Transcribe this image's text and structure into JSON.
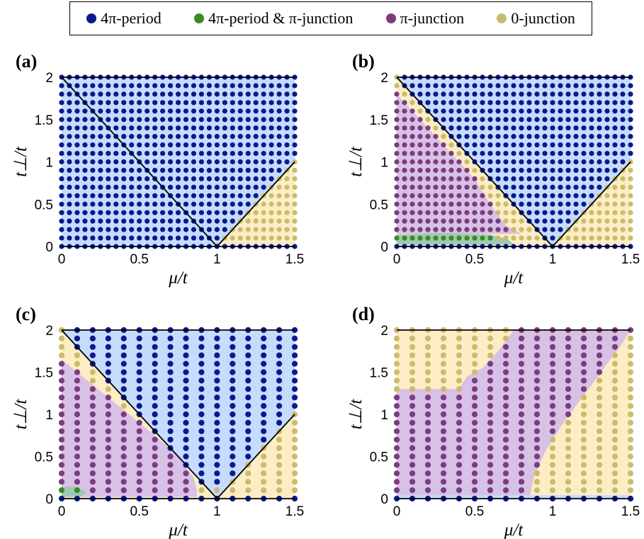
{
  "legend": {
    "items": [
      {
        "label": "4π-period",
        "color": "#0a1a8c"
      },
      {
        "label": "4π-period & π-junction",
        "color": "#3d8a1e"
      },
      {
        "label": "π-junction",
        "color": "#7b3c80"
      },
      {
        "label": "0-junction",
        "color": "#c9bd6c"
      }
    ]
  },
  "region_colors": {
    "four_pi": "#c6dcff",
    "pi": "#d7c1e4",
    "zero": "#fdedc4",
    "green": "#9fc9b7"
  },
  "chart_data": [
    {
      "panel": "(a)",
      "type": "scatter",
      "xlabel": "μ/t",
      "ylabel": "t⊥/t",
      "xlim": [
        0,
        1.5
      ],
      "ylim": [
        0,
        2
      ],
      "xticks": [
        "0",
        "0.5",
        "1",
        "1.5"
      ],
      "yticks": [
        "0",
        "0.5",
        "1",
        "1.5",
        "2"
      ],
      "grid_x_step": 0.05,
      "grid_y_step": 0.1,
      "phase_lines": [
        [
          [
            0,
            2
          ],
          [
            1,
            0
          ]
        ],
        [
          [
            1,
            0
          ],
          [
            1.5,
            1
          ]
        ]
      ],
      "point_classes": "4π-period everywhere except 0-junction below line t⊥ = 2(μ−t) for μ > 1"
    },
    {
      "panel": "(b)",
      "type": "scatter",
      "xlabel": "μ/t",
      "ylabel": "t⊥/t",
      "xlim": [
        0,
        1.5
      ],
      "ylim": [
        0,
        2
      ],
      "xticks": [
        "0",
        "0.5",
        "1",
        "1.5"
      ],
      "yticks": [
        "0",
        "0.5",
        "1",
        "1.5",
        "2"
      ],
      "grid_x_step": 0.05,
      "grid_y_step": 0.1,
      "phase_lines": [
        [
          [
            0,
            2
          ],
          [
            1,
            0
          ]
        ],
        [
          [
            1,
            0
          ],
          [
            1.5,
            1
          ]
        ]
      ],
      "regions": {
        "pi_boundary": [
          [
            0,
            1.8
          ],
          [
            0.1,
            1.6
          ],
          [
            0.2,
            1.4
          ],
          [
            0.3,
            1.2
          ],
          [
            0.4,
            1.0
          ],
          [
            0.5,
            0.8
          ],
          [
            0.6,
            0.5
          ],
          [
            0.7,
            0.25
          ],
          [
            0.8,
            0.1
          ],
          [
            0.85,
            0
          ]
        ],
        "green_region": {
          "x_max": 0.6,
          "y_max": 0.1
        }
      }
    },
    {
      "panel": "(c)",
      "type": "scatter",
      "xlabel": "μ/t",
      "ylabel": "t⊥/t",
      "xlim": [
        0,
        1.5
      ],
      "ylim": [
        0,
        2
      ],
      "xticks": [
        "0",
        "0.5",
        "1",
        "1.5"
      ],
      "yticks": [
        "0",
        "0.5",
        "1",
        "1.5",
        "2"
      ],
      "grid_x_step": 0.1,
      "grid_y_step": 0.1,
      "phase_lines": [
        [
          [
            0,
            2
          ],
          [
            1,
            0
          ]
        ],
        [
          [
            1,
            0
          ],
          [
            1.5,
            1
          ]
        ]
      ],
      "regions": {
        "pi_boundary": [
          [
            0,
            1.65
          ],
          [
            0.2,
            1.35
          ],
          [
            0.4,
            1.05
          ],
          [
            0.6,
            0.75
          ],
          [
            0.75,
            0.5
          ],
          [
            0.85,
            0.25
          ],
          [
            0.87,
            0.1
          ],
          [
            0.87,
            0
          ]
        ],
        "four_pi_boundary_right": [
          [
            1,
            0.1
          ],
          [
            1.1,
            0.35
          ],
          [
            1.2,
            0.6
          ],
          [
            1.3,
            0.75
          ],
          [
            1.4,
            0.88
          ],
          [
            1.5,
            1.0
          ]
        ],
        "green_region": {
          "x_max": 0.1,
          "y_max": 0.1
        }
      }
    },
    {
      "panel": "(d)",
      "type": "scatter",
      "xlabel": "μ/t",
      "ylabel": "t⊥/t",
      "xlim": [
        0,
        1.5
      ],
      "ylim": [
        0,
        2
      ],
      "xticks": [
        "0",
        "0.5",
        "1",
        "1.5"
      ],
      "yticks": [
        "0",
        "0.5",
        "1",
        "1.5",
        "2"
      ],
      "grid_x_step": 0.1,
      "grid_y_step": 0.1,
      "regions": {
        "zero_top_boundary": [
          [
            0,
            1.3
          ],
          [
            0.4,
            1.3
          ],
          [
            0.45,
            1.45
          ],
          [
            0.55,
            1.55
          ],
          [
            0.65,
            1.75
          ],
          [
            0.75,
            2.0
          ]
        ],
        "zero_bottom_boundary": [
          [
            0.85,
            0
          ],
          [
            0.88,
            0.25
          ],
          [
            0.95,
            0.55
          ],
          [
            1.05,
            0.85
          ],
          [
            1.15,
            1.1
          ],
          [
            1.25,
            1.35
          ],
          [
            1.35,
            1.6
          ],
          [
            1.45,
            1.85
          ],
          [
            1.5,
            2.0
          ]
        ]
      }
    }
  ]
}
